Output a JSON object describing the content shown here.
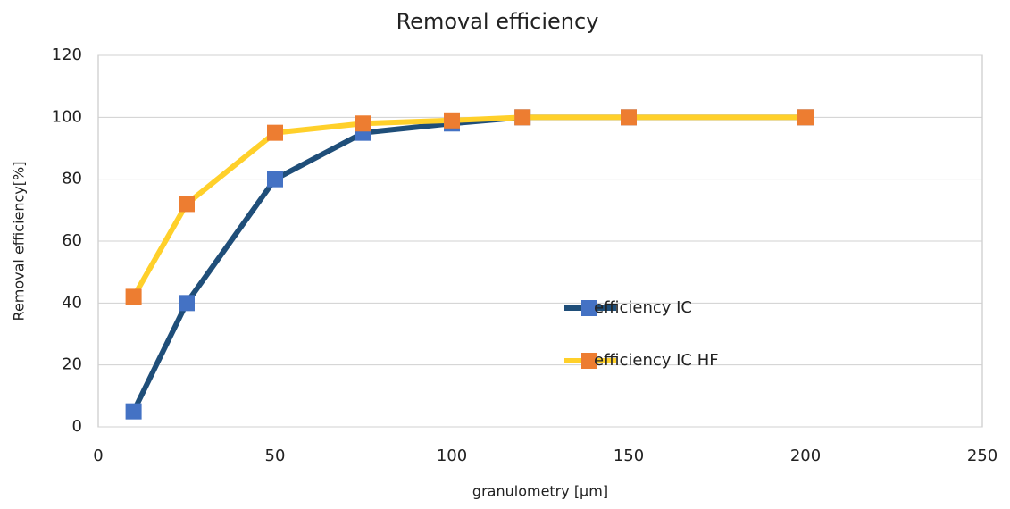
{
  "chart_data": {
    "type": "line",
    "title": "Removal efficiency",
    "x_label": "granulometry [µm]",
    "y_label": "Removal efficiency[%]",
    "x": [
      10,
      25,
      50,
      75,
      100,
      120,
      150,
      200
    ],
    "series": [
      {
        "name": "efficiency IC",
        "line_color": "#1f4e79",
        "marker_color": "#4472c4",
        "values": [
          5,
          40,
          80,
          95,
          98,
          100,
          100,
          100
        ]
      },
      {
        "name": "efficiency IC HF",
        "line_color": "#ffd02a",
        "marker_color": "#ed7d31",
        "values": [
          42,
          72,
          95,
          98,
          99,
          100,
          100,
          100
        ]
      }
    ],
    "xlim": [
      0,
      250
    ],
    "xticks": [
      0,
      50,
      100,
      150,
      200,
      250
    ],
    "ylim": [
      0,
      120
    ],
    "yticks": [
      0,
      20,
      40,
      60,
      80,
      100,
      120
    ],
    "grid": true,
    "legend": "inside"
  }
}
